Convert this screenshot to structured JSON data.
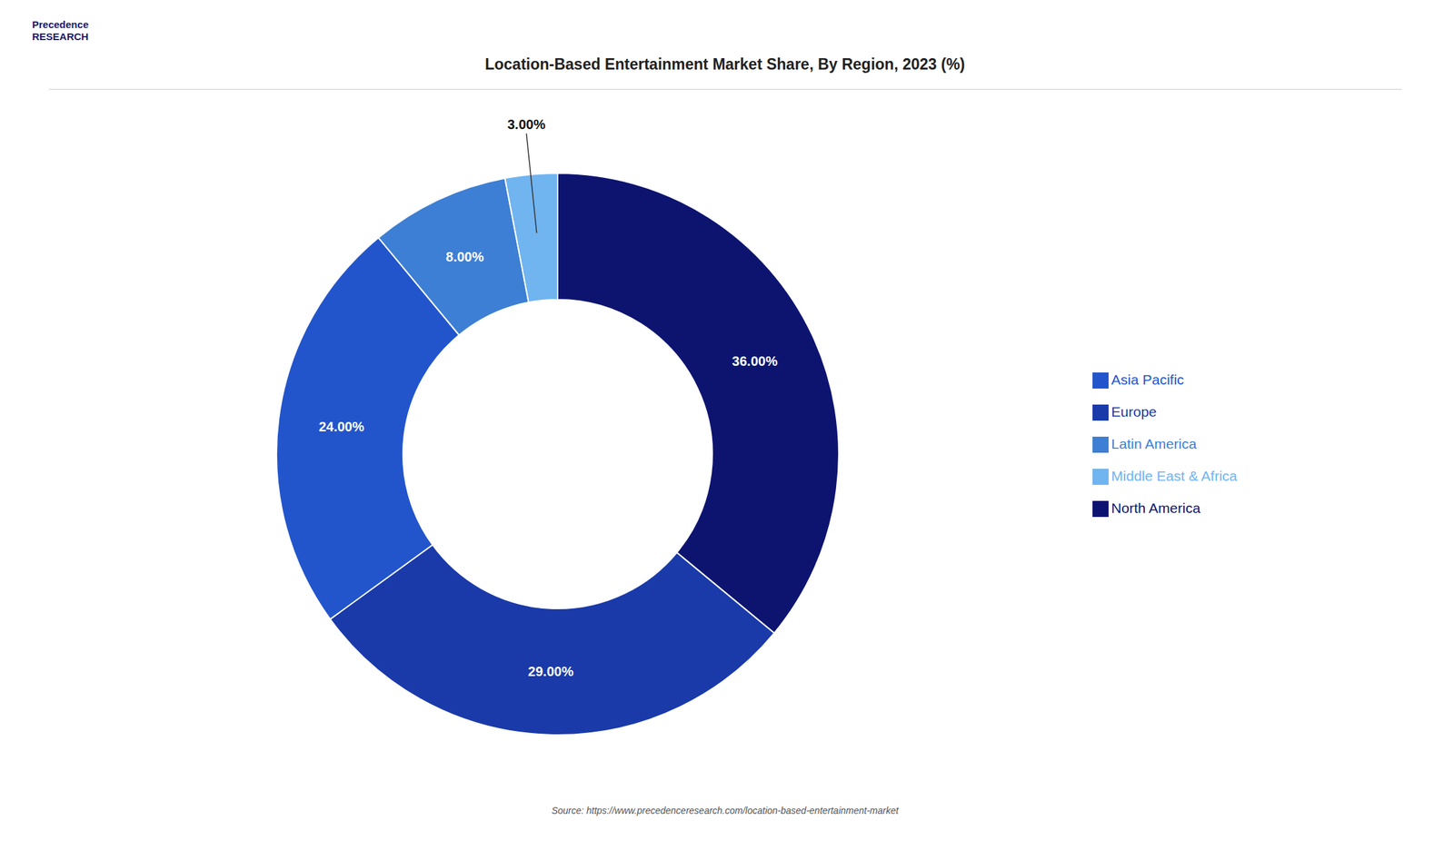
{
  "chart_data": {
    "type": "pie",
    "title": "Location-Based Entertainment Market Share, By Region, 2023 (%)",
    "categories": [
      "North America",
      "Europe",
      "Asia Pacific",
      "Latin America",
      "Middle East & Africa"
    ],
    "values": [
      36.0,
      29.0,
      24.0,
      8.0,
      3.0
    ],
    "value_labels": [
      "36.00%",
      "29.00%",
      "24.00%",
      "8.00%",
      "3.00%"
    ],
    "colors": [
      "#0d1470",
      "#1a3aaa",
      "#2255cc",
      "#3d7fd4",
      "#70b4f0"
    ],
    "data_labels": true,
    "legend": "right",
    "annotations": [
      "Precedence\nRESEARCH",
      "Source: https://www.precedenceresearch.com/location-based-entertainment-market"
    ]
  }
}
